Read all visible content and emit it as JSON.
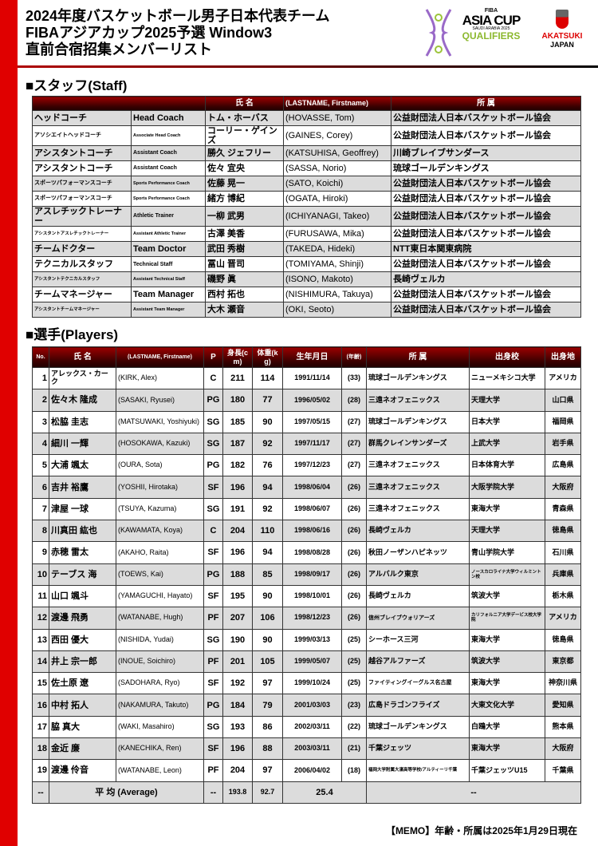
{
  "header": {
    "title_lines": [
      "2024年度バスケットボール男子日本代表チーム",
      "FIBAアジアカップ2025予選 Window3",
      "直前合宿招集メンバーリスト"
    ],
    "fiba_logo": {
      "top": "FIBA",
      "main": "ASIA CUP",
      "sub": "SAUDI ARABIA 2025",
      "bottom": "QUALIFIERS"
    },
    "jp_logo": {
      "line1": "AKATSUKI",
      "line2": "JAPAN"
    }
  },
  "colors": {
    "accent": "#e00000",
    "header_dark": "#3a0000",
    "row_alt": "#dcdcdc"
  },
  "staff": {
    "heading": "■スタッフ(Staff)",
    "columns": [
      "",
      "",
      "氏 名",
      "(LASTNAME, Firstname)",
      "所 属"
    ],
    "rows": [
      [
        "ヘッドコーチ",
        "Head Coach",
        "トム・ホーバス",
        "(HOVASSE, Tom)",
        "公益財団法人日本バスケットボール協会"
      ],
      [
        "アソシエイトヘッドコーチ",
        "Associate Head Coach",
        "コーリー・ゲインズ",
        "(GAINES, Corey)",
        "公益財団法人日本バスケットボール協会"
      ],
      [
        "アシスタントコーチ",
        "Assistant Coach",
        "勝久 ジェフリー",
        "(KATSUHISA, Geoffrey)",
        "川崎ブレイブサンダース"
      ],
      [
        "アシスタントコーチ",
        "Assistant Coach",
        "佐々 宜央",
        "(SASSA, Norio)",
        "琉球ゴールデンキングス"
      ],
      [
        "スポーツパフォーマンスコーチ",
        "Sports Performance Coach",
        "佐藤 晃一",
        "(SATO, Koichi)",
        "公益財団法人日本バスケットボール協会"
      ],
      [
        "スポーツパフォーマンスコーチ",
        "Sports Performance Coach",
        "緒方 博紀",
        "(OGATA, Hiroki)",
        "公益財団法人日本バスケットボール協会"
      ],
      [
        "アスレチックトレーナー",
        "Athletic Trainer",
        "一柳 武男",
        "(ICHIYANAGI, Takeo)",
        "公益財団法人日本バスケットボール協会"
      ],
      [
        "アシスタントアスレチックトレーナー",
        "Assistant Athletic Trainer",
        "古澤 美香",
        "(FURUSAWA, Mika)",
        "公益財団法人日本バスケットボール協会"
      ],
      [
        "チームドクター",
        "Team Doctor",
        "武田 秀樹",
        "(TAKEDA, Hideki)",
        "NTT東日本関東病院"
      ],
      [
        "テクニカルスタッフ",
        "Technical Staff",
        "冨山 晋司",
        "(TOMIYAMA, Shinji)",
        "公益財団法人日本バスケットボール協会"
      ],
      [
        "アシスタントテクニカルスタッフ",
        "Assistant Technical Staff",
        "磯野 眞",
        "(ISONO, Makoto)",
        "長崎ヴェルカ"
      ],
      [
        "チームマネージャー",
        "Team Manager",
        "西村 拓也",
        "(NISHIMURA, Takuya)",
        "公益財団法人日本バスケットボール協会"
      ],
      [
        "アシスタントチームマネージャー",
        "Assistant Team Manager",
        "大木 瀬音",
        "(OKI, Seoto)",
        "公益財団法人日本バスケットボール協会"
      ]
    ]
  },
  "players": {
    "heading": "■選手(Players)",
    "columns": [
      "No.",
      "氏 名",
      "(LASTNAME, Firstname)",
      "P",
      "身長(cm)",
      "体重(kg)",
      "生年月日",
      "(年齢)",
      "所 属",
      "出身校",
      "出身地"
    ],
    "rows": [
      [
        "1",
        "アレックス・カーク",
        "(KIRK, Alex)",
        "C",
        "211",
        "114",
        "1991/11/14",
        "(33)",
        "琉球ゴールデンキングス",
        "ニューメキシコ大学",
        "アメリカ"
      ],
      [
        "2",
        "佐々木 隆成",
        "(SASAKI, Ryusei)",
        "PG",
        "180",
        "77",
        "1996/05/02",
        "(28)",
        "三遠ネオフェニックス",
        "天理大学",
        "山口県"
      ],
      [
        "3",
        "松脇 圭志",
        "(MATSUWAKI, Yoshiyuki)",
        "SG",
        "185",
        "90",
        "1997/05/15",
        "(27)",
        "琉球ゴールデンキングス",
        "日本大学",
        "福岡県"
      ],
      [
        "4",
        "細川 一輝",
        "(HOSOKAWA, Kazuki)",
        "SG",
        "187",
        "92",
        "1997/11/17",
        "(27)",
        "群馬クレインサンダーズ",
        "上武大学",
        "岩手県"
      ],
      [
        "5",
        "大浦 颯太",
        "(OURA, Sota)",
        "PG",
        "182",
        "76",
        "1997/12/23",
        "(27)",
        "三遠ネオフェニックス",
        "日本体育大学",
        "広島県"
      ],
      [
        "6",
        "吉井 裕鷹",
        "(YOSHII, Hirotaka)",
        "SF",
        "196",
        "94",
        "1998/06/04",
        "(26)",
        "三遠ネオフェニックス",
        "大阪学院大学",
        "大阪府"
      ],
      [
        "7",
        "津屋 一球",
        "(TSUYA, Kazuma)",
        "SG",
        "191",
        "92",
        "1998/06/07",
        "(26)",
        "三遠ネオフェニックス",
        "東海大学",
        "青森県"
      ],
      [
        "8",
        "川真田 紘也",
        "(KAWAMATA, Koya)",
        "C",
        "204",
        "110",
        "1998/06/16",
        "(26)",
        "長崎ヴェルカ",
        "天理大学",
        "徳島県"
      ],
      [
        "9",
        "赤穂 雷太",
        "(AKAHO, Raita)",
        "SF",
        "196",
        "94",
        "1998/08/28",
        "(26)",
        "秋田ノーザンハピネッツ",
        "青山学院大学",
        "石川県"
      ],
      [
        "10",
        "テーブス 海",
        "(TOEWS, Kai)",
        "PG",
        "188",
        "85",
        "1998/09/17",
        "(26)",
        "アルバルク東京",
        "ノースカロライナ大学ウィルミントン校",
        "兵庫県"
      ],
      [
        "11",
        "山口 颯斗",
        "(YAMAGUCHI, Hayato)",
        "SF",
        "195",
        "90",
        "1998/10/01",
        "(26)",
        "長崎ヴェルカ",
        "筑波大学",
        "栃木県"
      ],
      [
        "12",
        "渡邊 飛勇",
        "(WATANABE, Hugh)",
        "PF",
        "207",
        "106",
        "1998/12/23",
        "(26)",
        "信州ブレイブウォリアーズ",
        "カリフォルニア大学デービス校大学院",
        "アメリカ"
      ],
      [
        "13",
        "西田 優大",
        "(NISHIDA, Yudai)",
        "SG",
        "190",
        "90",
        "1999/03/13",
        "(25)",
        "シーホース三河",
        "東海大学",
        "徳島県"
      ],
      [
        "14",
        "井上 宗一郎",
        "(INOUE, Soichiro)",
        "PF",
        "201",
        "105",
        "1999/05/07",
        "(25)",
        "越谷アルファーズ",
        "筑波大学",
        "東京都"
      ],
      [
        "15",
        "佐土原 遼",
        "(SADOHARA, Ryo)",
        "SF",
        "192",
        "97",
        "1999/10/24",
        "(25)",
        "ファイティングイーグルス名古屋",
        "東海大学",
        "神奈川県"
      ],
      [
        "16",
        "中村 拓人",
        "(NAKAMURA, Takuto)",
        "PG",
        "184",
        "79",
        "2001/03/03",
        "(23)",
        "広島ドラゴンフライズ",
        "大東文化大学",
        "愛知県"
      ],
      [
        "17",
        "脇 真大",
        "(WAKI, Masahiro)",
        "SG",
        "193",
        "86",
        "2002/03/11",
        "(22)",
        "琉球ゴールデンキングス",
        "白鴎大学",
        "熊本県"
      ],
      [
        "18",
        "金近 廉",
        "(KANECHIKA, Ren)",
        "SF",
        "196",
        "88",
        "2003/03/11",
        "(21)",
        "千葉ジェッツ",
        "東海大学",
        "大阪府"
      ],
      [
        "19",
        "渡邊 伶音",
        "(WATANABE, Leon)",
        "PF",
        "204",
        "97",
        "2006/04/02",
        "(18)",
        "福岡大学附属大濠高等学校/アルティーリ千葉",
        "千葉ジェッツU15",
        "千葉県"
      ]
    ],
    "average": {
      "no": "--",
      "label": "平 均 (Average)",
      "p": "--",
      "height": "193.8",
      "weight": "92.7",
      "age": "25.4",
      "rest": "--"
    }
  },
  "memo": "【MEMO】年齢・所属は2025年1月29日現在"
}
